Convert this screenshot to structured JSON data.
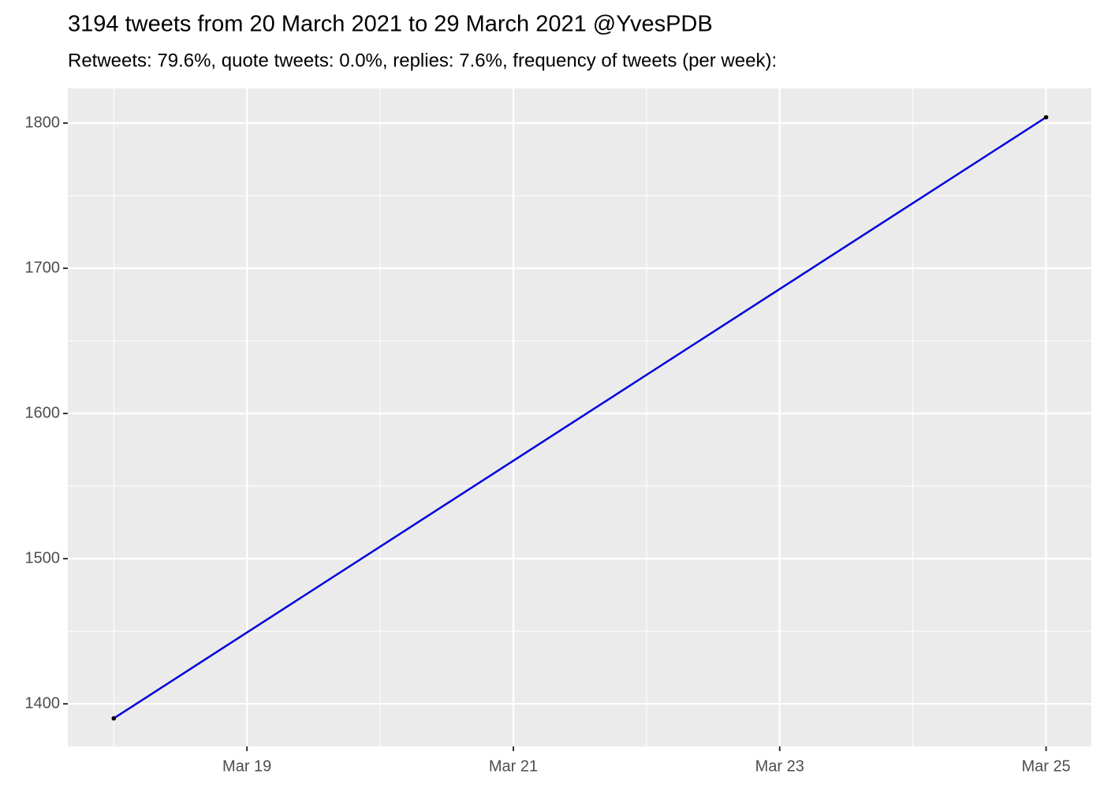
{
  "chart_data": {
    "type": "line",
    "title": "3194 tweets from 20 March 2021 to 29 March 2021 @YvesPDB",
    "subtitle": "Retweets: 79.6%, quote tweets: 0.0%, replies: 7.6%, frequency of tweets (per week):",
    "x": [
      18,
      25
    ],
    "values": [
      1390,
      1804
    ],
    "color": "#0000dd",
    "point_color": "#000000",
    "xlim": [
      17.655,
      25.34
    ],
    "xticks": [
      {
        "value": 19,
        "label": "Mar 19"
      },
      {
        "value": 21,
        "label": "Mar 21"
      },
      {
        "value": 23,
        "label": "Mar 23"
      },
      {
        "value": 25,
        "label": "Mar 25"
      }
    ],
    "ylim": [
      1370.7,
      1823.9
    ],
    "yticks": [
      1400,
      1500,
      1600,
      1700,
      1800
    ],
    "grid": true
  }
}
